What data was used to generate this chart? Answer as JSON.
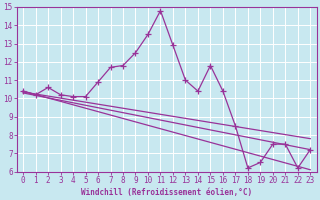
{
  "xlabel": "Windchill (Refroidissement éolien,°C)",
  "xlim": [
    -0.5,
    23.5
  ],
  "ylim": [
    6,
    15
  ],
  "xticks": [
    0,
    1,
    2,
    3,
    4,
    5,
    6,
    7,
    8,
    9,
    10,
    11,
    12,
    13,
    14,
    15,
    16,
    17,
    18,
    19,
    20,
    21,
    22,
    23
  ],
  "yticks": [
    6,
    7,
    8,
    9,
    10,
    11,
    12,
    13,
    14,
    15
  ],
  "line_color": "#993399",
  "bg_color": "#c8e8f0",
  "grid_color": "#b0d8e8",
  "main_line_x": [
    0,
    1,
    2,
    3,
    4,
    5,
    6,
    7,
    8,
    9,
    10,
    11,
    12,
    13,
    14,
    15,
    16,
    17,
    18,
    19,
    20,
    21,
    22,
    23
  ],
  "main_line_y": [
    10.4,
    10.2,
    10.6,
    10.2,
    10.1,
    10.1,
    10.9,
    11.7,
    11.8,
    12.5,
    13.5,
    14.8,
    12.9,
    11.0,
    10.4,
    11.8,
    10.4,
    8.5,
    6.2,
    6.5,
    7.5,
    7.5,
    6.2,
    7.2
  ],
  "trend1_x": [
    0,
    23
  ],
  "trend1_y": [
    10.4,
    6.1
  ],
  "trend2_x": [
    0,
    23
  ],
  "trend2_y": [
    10.35,
    7.8
  ],
  "trend3_x": [
    0,
    23
  ],
  "trend3_y": [
    10.3,
    7.2
  ]
}
